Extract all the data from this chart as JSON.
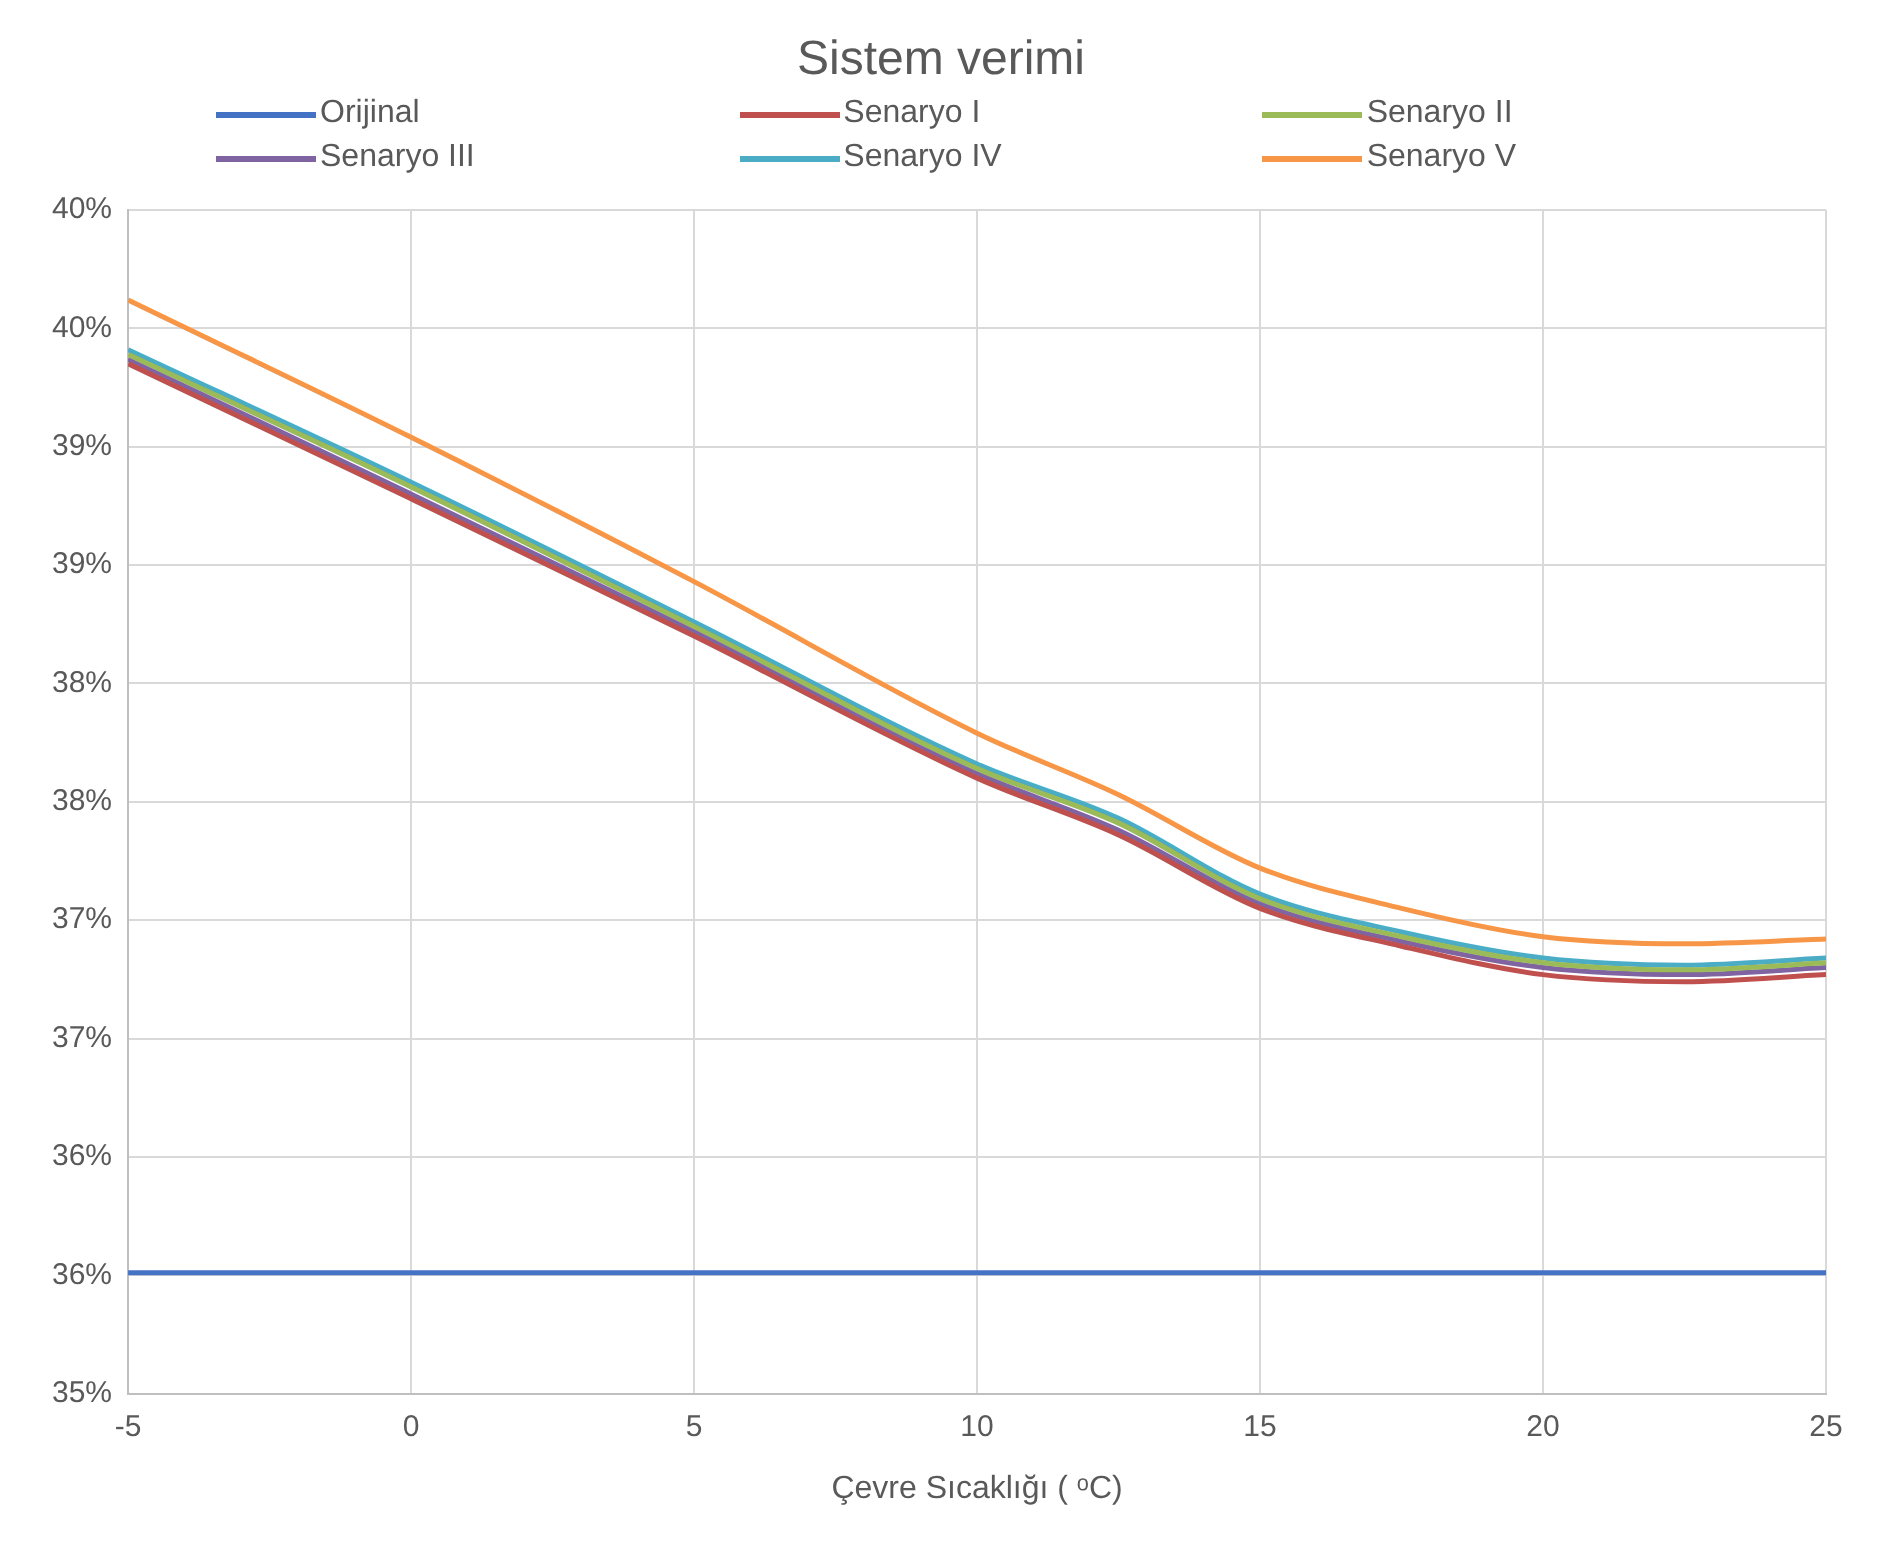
{
  "chart_data": {
    "type": "line",
    "title": "Sistem verimi",
    "xlabel": "Çevre Sıcaklığı ( ᵒC)",
    "x": [
      -5,
      0,
      5,
      10,
      12.5,
      15,
      17.5,
      20,
      22.5,
      25
    ],
    "series": [
      {
        "name": "Orijinal",
        "color": "#4472c4",
        "values": [
          35.51,
          35.51,
          35.51,
          35.51,
          35.51,
          35.51,
          35.51,
          35.51,
          35.51,
          35.51
        ]
      },
      {
        "name": "Senaryo I",
        "color": "#c0504d",
        "values": [
          39.35,
          38.78,
          38.2,
          37.6,
          37.36,
          37.05,
          36.89,
          36.77,
          36.74,
          36.77
        ]
      },
      {
        "name": "Senaryo II",
        "color": "#9bbb59",
        "values": [
          39.39,
          38.83,
          38.24,
          37.64,
          37.41,
          37.09,
          36.93,
          36.82,
          36.79,
          36.82
        ]
      },
      {
        "name": "Senaryo III",
        "color": "#8064a2",
        "values": [
          39.37,
          38.8,
          38.22,
          37.62,
          37.38,
          37.07,
          36.91,
          36.8,
          36.77,
          36.8
        ]
      },
      {
        "name": "Senaryo IV",
        "color": "#4bacc6",
        "values": [
          39.41,
          38.85,
          38.26,
          37.66,
          37.43,
          37.11,
          36.95,
          36.84,
          36.81,
          36.84
        ]
      },
      {
        "name": "Senaryo V",
        "color": "#f79646",
        "values": [
          39.62,
          39.04,
          38.43,
          37.79,
          37.53,
          37.22,
          37.05,
          36.93,
          36.9,
          36.92
        ]
      }
    ],
    "xlim": [
      -5,
      25
    ],
    "xticks": [
      -5,
      0,
      5,
      10,
      15,
      20,
      25
    ],
    "ylim": [
      35,
      40
    ],
    "yticks": [
      {
        "value": 35,
        "label": "35%"
      },
      {
        "value": 35.5,
        "label": "36%"
      },
      {
        "value": 36,
        "label": "36%"
      },
      {
        "value": 36.5,
        "label": "37%"
      },
      {
        "value": 37,
        "label": "37%"
      },
      {
        "value": 37.5,
        "label": "38%"
      },
      {
        "value": 38,
        "label": "38%"
      },
      {
        "value": 38.5,
        "label": "39%"
      },
      {
        "value": 39,
        "label": "39%"
      },
      {
        "value": 39.5,
        "label": "40%"
      },
      {
        "value": 40,
        "label": "40%"
      }
    ],
    "grid": true,
    "legend": "top",
    "marker": "none",
    "line_style": "solid"
  }
}
